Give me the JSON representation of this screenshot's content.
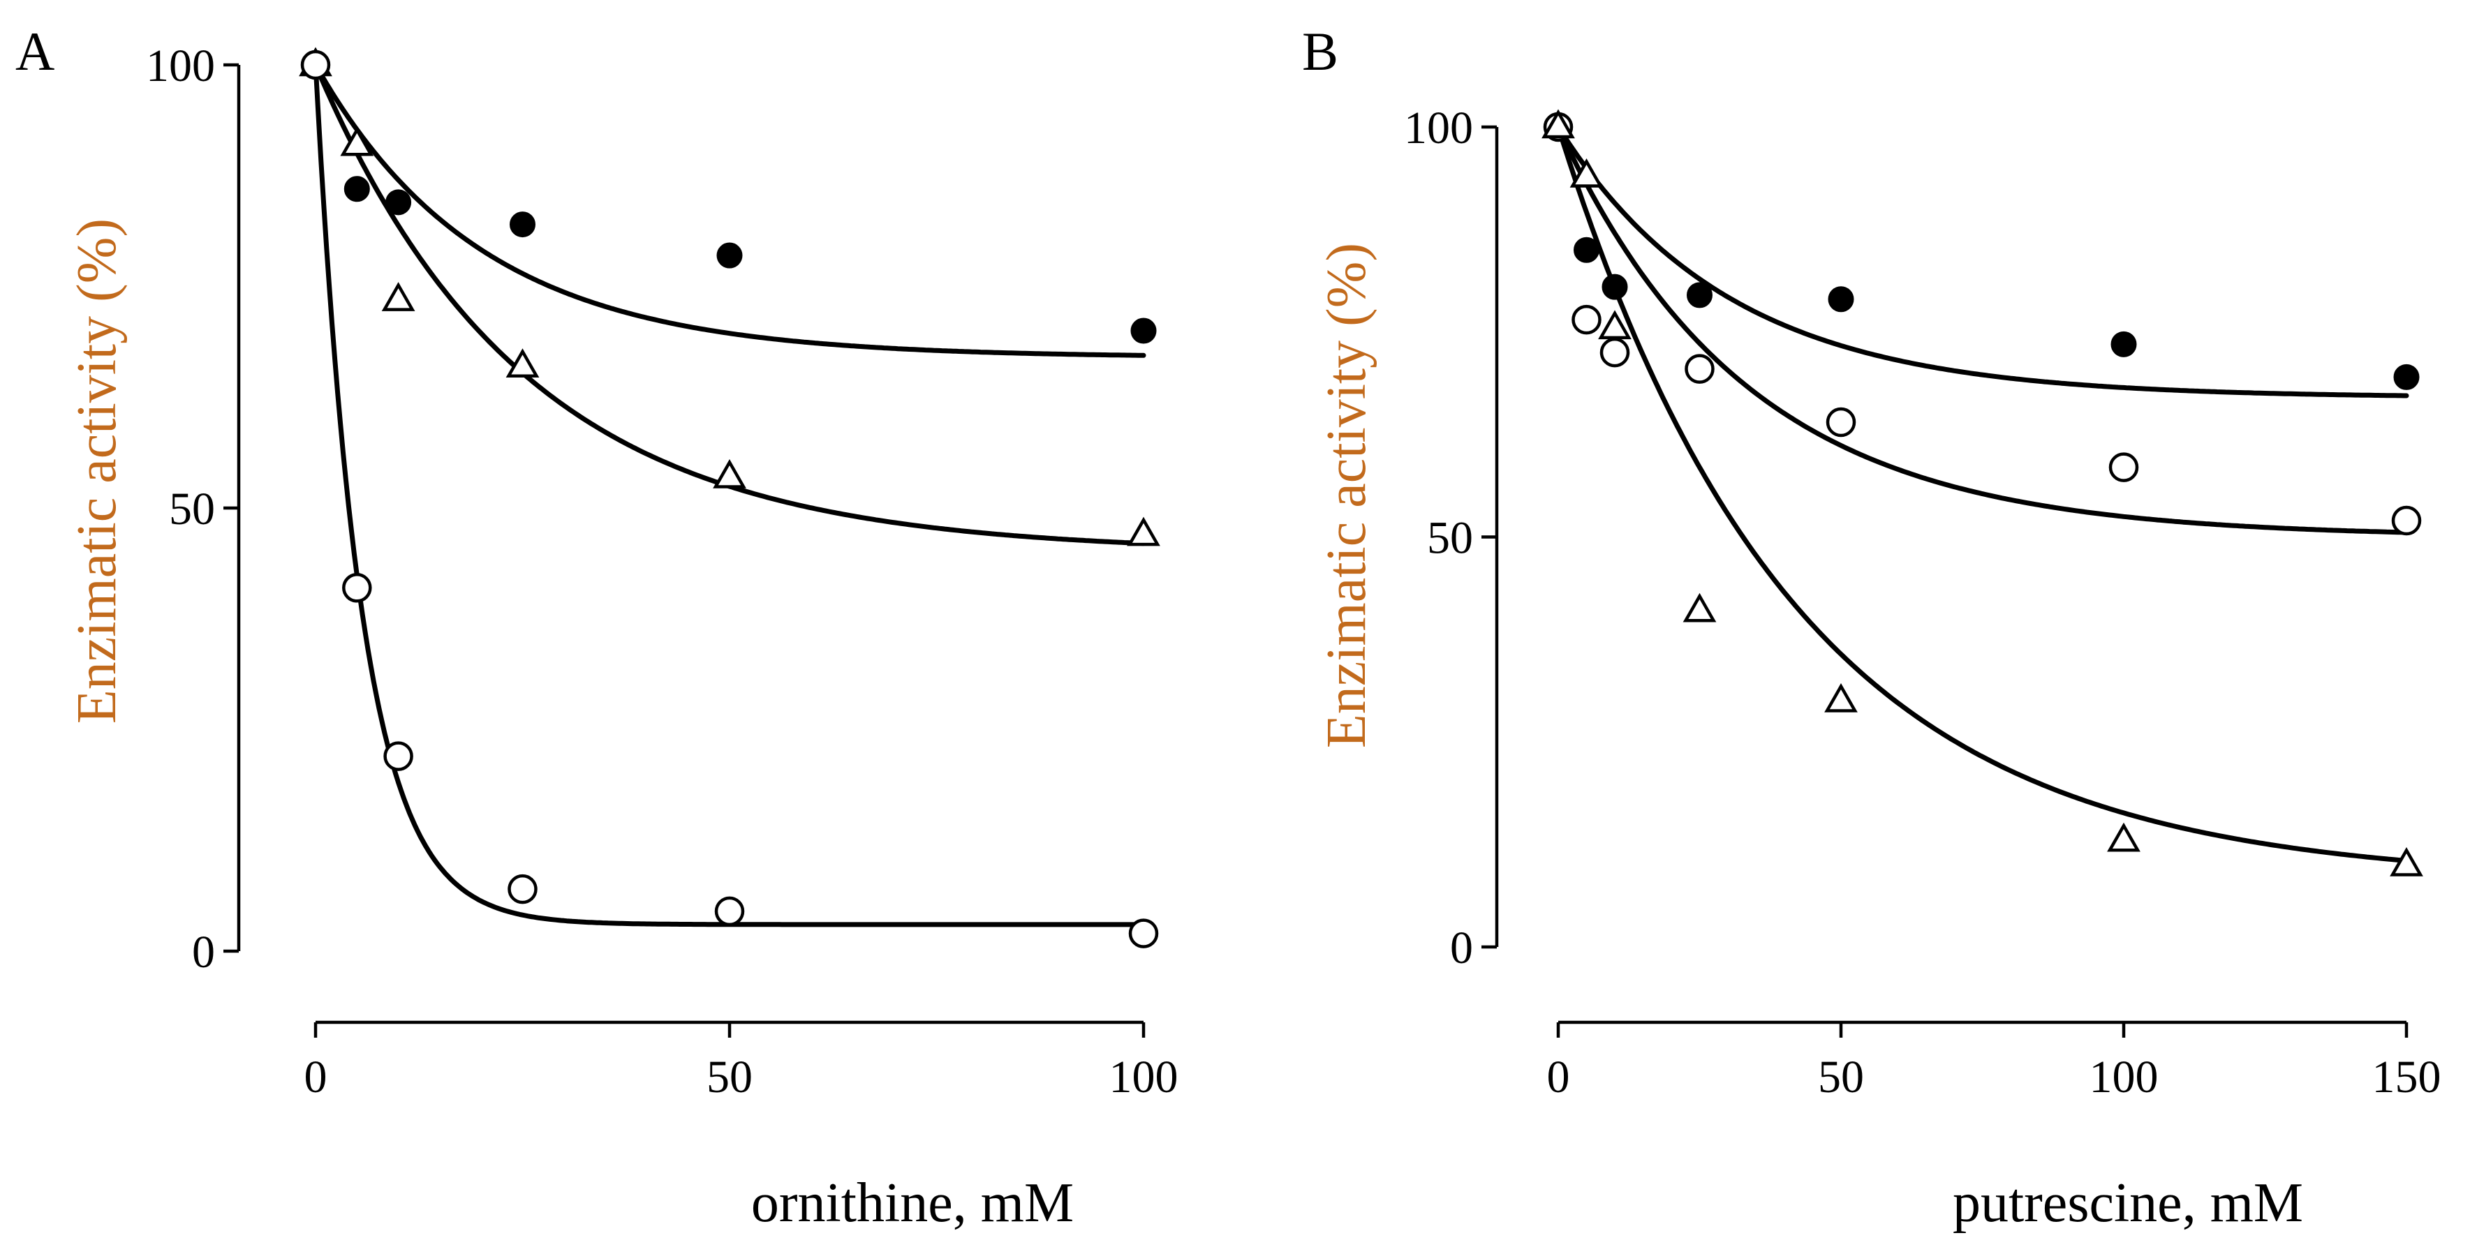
{
  "chart_data": [
    {
      "type": "scatter",
      "panel_label": "A",
      "xlabel": "ornithine, mM",
      "ylabel": "Enzimatic activity (%)",
      "ylabel_color": "#c26a1c",
      "xlim": [
        0,
        100
      ],
      "ylim": [
        0,
        100
      ],
      "xticks": [
        0,
        50,
        100
      ],
      "yticks": [
        0,
        50,
        100
      ],
      "xtick_labels": [
        "0",
        "50",
        "100"
      ],
      "ytick_labels": [
        "0",
        "50",
        "100"
      ],
      "grid": false,
      "legend": "none",
      "series": [
        {
          "name": "filled circles",
          "marker": "filled-circle",
          "x": [
            0,
            5,
            10,
            25,
            50,
            100
          ],
          "y": [
            100,
            86,
            84.5,
            82,
            78.5,
            70
          ],
          "fit": {
            "plateau": 67,
            "amplitude": 33,
            "k": 0.05
          }
        },
        {
          "name": "open triangles",
          "marker": "open-triangle",
          "x": [
            0,
            5,
            10,
            25,
            50,
            100
          ],
          "y": [
            100,
            91,
            73.5,
            66,
            53.5,
            47
          ],
          "fit": {
            "plateau": 45,
            "amplitude": 55,
            "k": 0.04
          }
        },
        {
          "name": "open circles",
          "marker": "open-circle",
          "x": [
            0,
            5,
            10,
            25,
            50,
            100
          ],
          "y": [
            100,
            41,
            22,
            7,
            4.5,
            2
          ],
          "fit": {
            "plateau": 3,
            "amplitude": 97,
            "k": 0.18
          }
        }
      ]
    },
    {
      "type": "scatter",
      "panel_label": "B",
      "xlabel": "putrescine, mM",
      "ylabel": "Enzimatic activity (%)",
      "ylabel_color": "#c26a1c",
      "xlim": [
        0,
        150
      ],
      "ylim": [
        0,
        100
      ],
      "xticks": [
        0,
        50,
        100,
        150
      ],
      "yticks": [
        0,
        50,
        100
      ],
      "xtick_labels": [
        "0",
        "50",
        "100",
        "150"
      ],
      "ytick_labels": [
        "0",
        "50",
        "100"
      ],
      "grid": false,
      "legend": "none",
      "series": [
        {
          "name": "filled circles",
          "marker": "filled-circle",
          "x": [
            0,
            5,
            10,
            25,
            50,
            100,
            150
          ],
          "y": [
            100,
            85,
            80.5,
            79.5,
            79,
            73.5,
            69.5
          ],
          "fit": {
            "plateau": 67,
            "amplitude": 33,
            "k": 0.033
          }
        },
        {
          "name": "open circles",
          "marker": "open-circle",
          "x": [
            0,
            5,
            10,
            25,
            50,
            100,
            150
          ],
          "y": [
            100,
            76.5,
            72.5,
            70.5,
            64,
            58.5,
            52
          ],
          "fit": {
            "plateau": 50,
            "amplitude": 50,
            "k": 0.03
          }
        },
        {
          "name": "open triangles",
          "marker": "open-triangle",
          "x": [
            0,
            5,
            10,
            25,
            50,
            100,
            150
          ],
          "y": [
            100,
            94,
            75.5,
            41,
            30,
            13,
            10
          ],
          "fit": {
            "plateau": 8,
            "amplitude": 92,
            "k": 0.024
          }
        }
      ]
    }
  ]
}
